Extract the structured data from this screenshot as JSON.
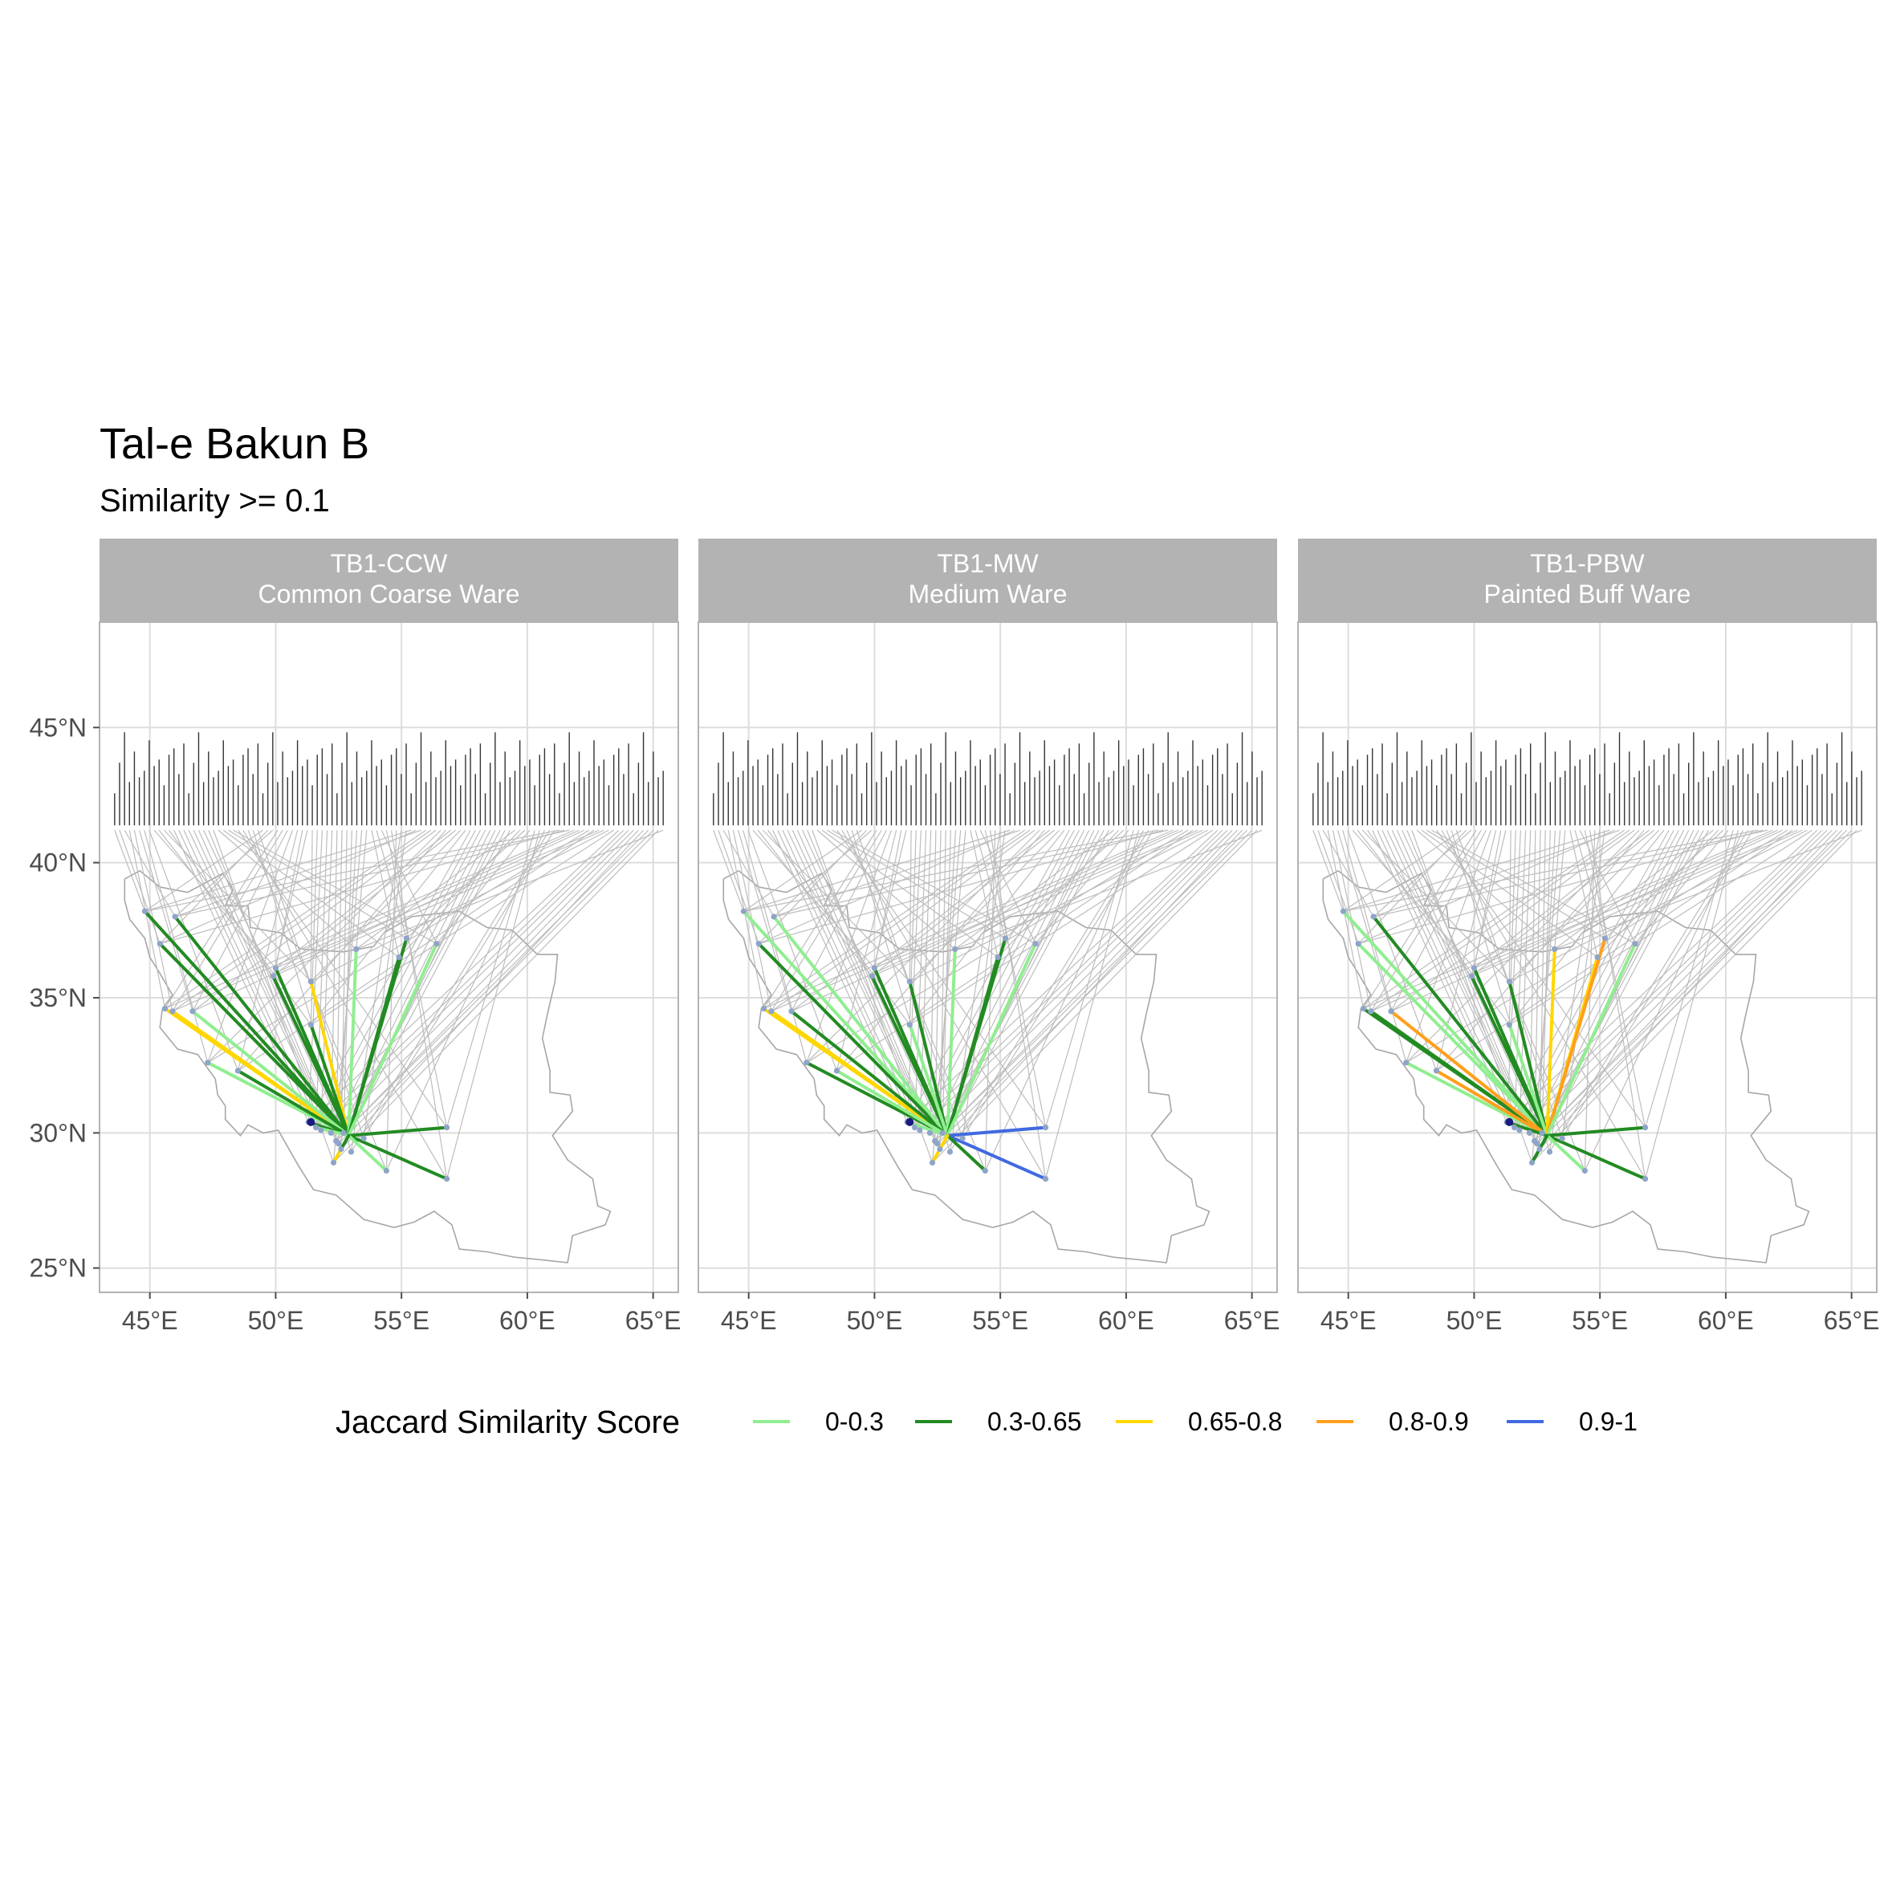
{
  "title": "Tal-e Bakun B",
  "subtitle": "Similarity >= 0.1",
  "lat_labels": [
    "25°N",
    "30°N",
    "35°N",
    "40°N",
    "45°N"
  ],
  "lon_labels": [
    "45°E",
    "50°E",
    "55°E",
    "60°E",
    "65°E"
  ],
  "legend": {
    "title": "Jaccard Similarity Score",
    "items": [
      {
        "label": "0-0.3",
        "color": "#90ee90"
      },
      {
        "label": "0.3-0.65",
        "color": "#228b22"
      },
      {
        "label": "0.65-0.8",
        "color": "#ffd700"
      },
      {
        "label": "0.8-0.9",
        "color": "#ff9f1c"
      },
      {
        "label": "0.9-1",
        "color": "#4169e1"
      }
    ]
  },
  "colors": {
    "strip": "#b3b3b3",
    "grid": "#dddddd",
    "label_leader": "#bdbdbd",
    "border": "#a6a6a6",
    "site_point": "#8ea4c8",
    "origin_point": "#1a1a80"
  },
  "panels": [
    {
      "code": "TB1-CCW",
      "name": "Common Coarse Ware"
    },
    {
      "code": "TB1-MW",
      "name": "Medium Ware"
    },
    {
      "code": "TB1-PBW",
      "name": "Painted Buff Ware"
    }
  ],
  "map_data": {
    "origin": [
      52.9,
      29.9
    ],
    "xlim": [
      43,
      66
    ],
    "ylim": [
      24.1,
      48.9
    ],
    "label_row_lat": 41.2,
    "label_lon_range": [
      43.6,
      65.4
    ],
    "label_count": 112,
    "border_lonlat": [
      [
        44.0,
        39.4
      ],
      [
        44.6,
        39.7
      ],
      [
        45.4,
        39.1
      ],
      [
        46.5,
        38.9
      ],
      [
        47.9,
        39.6
      ],
      [
        48.3,
        39.0
      ],
      [
        48.0,
        38.4
      ],
      [
        48.9,
        38.4
      ],
      [
        49.0,
        37.6
      ],
      [
        50.2,
        37.4
      ],
      [
        51.0,
        36.8
      ],
      [
        52.7,
        36.7
      ],
      [
        53.9,
        36.9
      ],
      [
        54.3,
        37.4
      ],
      [
        55.4,
        38.0
      ],
      [
        56.3,
        38.1
      ],
      [
        57.3,
        38.2
      ],
      [
        58.4,
        37.6
      ],
      [
        59.4,
        37.5
      ],
      [
        60.4,
        36.6
      ],
      [
        61.2,
        36.6
      ],
      [
        61.1,
        35.6
      ],
      [
        60.8,
        34.4
      ],
      [
        60.6,
        33.5
      ],
      [
        60.9,
        32.3
      ],
      [
        60.9,
        31.5
      ],
      [
        61.7,
        31.4
      ],
      [
        61.8,
        30.8
      ],
      [
        61.0,
        29.9
      ],
      [
        61.6,
        29.0
      ],
      [
        62.6,
        28.3
      ],
      [
        62.8,
        27.3
      ],
      [
        63.3,
        27.1
      ],
      [
        63.1,
        26.6
      ],
      [
        61.8,
        26.2
      ],
      [
        61.6,
        25.2
      ],
      [
        60.6,
        25.3
      ],
      [
        59.5,
        25.4
      ],
      [
        58.4,
        25.6
      ],
      [
        57.3,
        25.7
      ],
      [
        57.0,
        26.6
      ],
      [
        56.3,
        27.1
      ],
      [
        55.5,
        26.7
      ],
      [
        54.7,
        26.5
      ],
      [
        53.5,
        26.8
      ],
      [
        52.4,
        27.7
      ],
      [
        51.5,
        27.9
      ],
      [
        50.9,
        28.8
      ],
      [
        50.1,
        30.1
      ],
      [
        49.5,
        30.0
      ],
      [
        48.9,
        30.3
      ],
      [
        48.6,
        29.9
      ],
      [
        48.0,
        30.5
      ],
      [
        48.0,
        31.0
      ],
      [
        47.7,
        31.4
      ],
      [
        47.6,
        32.0
      ],
      [
        46.9,
        32.9
      ],
      [
        46.1,
        33.1
      ],
      [
        45.4,
        33.9
      ],
      [
        45.5,
        34.6
      ],
      [
        45.9,
        35.1
      ],
      [
        45.4,
        35.9
      ],
      [
        45.0,
        36.5
      ],
      [
        44.8,
        37.2
      ],
      [
        44.2,
        37.9
      ],
      [
        44.0,
        38.6
      ],
      [
        44.0,
        39.4
      ]
    ],
    "sites": [
      [
        44.8,
        38.2
      ],
      [
        45.4,
        37.0
      ],
      [
        46.0,
        38.0
      ],
      [
        45.6,
        34.6
      ],
      [
        45.9,
        34.5
      ],
      [
        46.7,
        34.5
      ],
      [
        47.3,
        32.6
      ],
      [
        48.5,
        32.3
      ],
      [
        50.0,
        36.1
      ],
      [
        49.9,
        35.8
      ],
      [
        51.4,
        35.6
      ],
      [
        51.4,
        34.0
      ],
      [
        51.3,
        30.4
      ],
      [
        51.6,
        30.2
      ],
      [
        51.8,
        30.1
      ],
      [
        52.2,
        30.0
      ],
      [
        52.4,
        29.7
      ],
      [
        52.6,
        29.4
      ],
      [
        52.7,
        30.0
      ],
      [
        52.5,
        29.6
      ],
      [
        52.3,
        28.9
      ],
      [
        53.2,
        36.8
      ],
      [
        54.9,
        36.5
      ],
      [
        55.2,
        37.2
      ],
      [
        56.4,
        37.0
      ],
      [
        56.8,
        30.2
      ],
      [
        56.8,
        28.3
      ],
      [
        54.4,
        28.6
      ],
      [
        53.0,
        29.3
      ],
      [
        53.5,
        29.8
      ]
    ],
    "connections": [
      [
        {
          "to": [
            44.8,
            38.2
          ],
          "c": 1
        },
        {
          "to": [
            45.4,
            37.0
          ],
          "c": 1
        },
        {
          "to": [
            46.0,
            38.0
          ],
          "c": 1
        },
        {
          "to": [
            45.6,
            34.6
          ],
          "c": 2
        },
        {
          "to": [
            45.9,
            34.5
          ],
          "c": 2
        },
        {
          "to": [
            46.7,
            34.5
          ],
          "c": 0
        },
        {
          "to": [
            47.3,
            32.6
          ],
          "c": 0
        },
        {
          "to": [
            48.5,
            32.3
          ],
          "c": 1
        },
        {
          "to": [
            50.0,
            36.1
          ],
          "c": 1
        },
        {
          "to": [
            49.9,
            35.8
          ],
          "c": 1
        },
        {
          "to": [
            51.4,
            35.6
          ],
          "c": 2
        },
        {
          "to": [
            51.4,
            34.0
          ],
          "c": 1
        },
        {
          "to": [
            51.3,
            30.4
          ],
          "c": 1
        },
        {
          "to": [
            51.6,
            30.2
          ],
          "c": 0
        },
        {
          "to": [
            52.3,
            28.9
          ],
          "c": 2
        },
        {
          "to": [
            53.2,
            36.8
          ],
          "c": 0
        },
        {
          "to": [
            54.9,
            36.5
          ],
          "c": 1
        },
        {
          "to": [
            55.2,
            37.2
          ],
          "c": 1
        },
        {
          "to": [
            56.4,
            37.0
          ],
          "c": 0
        },
        {
          "to": [
            56.8,
            30.2
          ],
          "c": 1
        },
        {
          "to": [
            56.8,
            28.3
          ],
          "c": 1
        },
        {
          "to": [
            54.4,
            28.6
          ],
          "c": 0
        },
        {
          "to": [
            52.6,
            29.4
          ],
          "c": 1
        }
      ],
      [
        {
          "to": [
            44.8,
            38.2
          ],
          "c": 0
        },
        {
          "to": [
            45.4,
            37.0
          ],
          "c": 1
        },
        {
          "to": [
            46.0,
            38.0
          ],
          "c": 0
        },
        {
          "to": [
            45.6,
            34.6
          ],
          "c": 2
        },
        {
          "to": [
            45.9,
            34.5
          ],
          "c": 2
        },
        {
          "to": [
            46.7,
            34.5
          ],
          "c": 1
        },
        {
          "to": [
            47.3,
            32.6
          ],
          "c": 1
        },
        {
          "to": [
            48.5,
            32.3
          ],
          "c": 0
        },
        {
          "to": [
            50.0,
            36.1
          ],
          "c": 1
        },
        {
          "to": [
            49.9,
            35.8
          ],
          "c": 1
        },
        {
          "to": [
            51.4,
            35.6
          ],
          "c": 1
        },
        {
          "to": [
            51.4,
            34.0
          ],
          "c": 0
        },
        {
          "to": [
            51.3,
            30.4
          ],
          "c": 0
        },
        {
          "to": [
            52.3,
            28.9
          ],
          "c": 2
        },
        {
          "to": [
            53.2,
            36.8
          ],
          "c": 0
        },
        {
          "to": [
            54.9,
            36.5
          ],
          "c": 1
        },
        {
          "to": [
            55.2,
            37.2
          ],
          "c": 1
        },
        {
          "to": [
            56.4,
            37.0
          ],
          "c": 0
        },
        {
          "to": [
            56.8,
            30.2
          ],
          "c": 4
        },
        {
          "to": [
            56.8,
            28.3
          ],
          "c": 4
        },
        {
          "to": [
            54.4,
            28.6
          ],
          "c": 1
        },
        {
          "to": [
            52.6,
            29.4
          ],
          "c": 2
        }
      ],
      [
        {
          "to": [
            44.8,
            38.2
          ],
          "c": 0
        },
        {
          "to": [
            45.4,
            37.0
          ],
          "c": 0
        },
        {
          "to": [
            46.0,
            38.0
          ],
          "c": 1
        },
        {
          "to": [
            45.6,
            34.6
          ],
          "c": 1
        },
        {
          "to": [
            45.9,
            34.5
          ],
          "c": 1
        },
        {
          "to": [
            46.7,
            34.5
          ],
          "c": 3
        },
        {
          "to": [
            47.3,
            32.6
          ],
          "c": 0
        },
        {
          "to": [
            48.5,
            32.3
          ],
          "c": 3
        },
        {
          "to": [
            50.0,
            36.1
          ],
          "c": 1
        },
        {
          "to": [
            49.9,
            35.8
          ],
          "c": 1
        },
        {
          "to": [
            51.4,
            35.6
          ],
          "c": 1
        },
        {
          "to": [
            51.4,
            34.0
          ],
          "c": 0
        },
        {
          "to": [
            51.3,
            30.4
          ],
          "c": 1
        },
        {
          "to": [
            52.3,
            28.9
          ],
          "c": 1
        },
        {
          "to": [
            53.2,
            36.8
          ],
          "c": 2
        },
        {
          "to": [
            54.9,
            36.5
          ],
          "c": 2
        },
        {
          "to": [
            55.2,
            37.2
          ],
          "c": 3
        },
        {
          "to": [
            56.4,
            37.0
          ],
          "c": 0
        },
        {
          "to": [
            56.8,
            30.2
          ],
          "c": 1
        },
        {
          "to": [
            56.8,
            28.3
          ],
          "c": 1
        },
        {
          "to": [
            54.4,
            28.6
          ],
          "c": 0
        },
        {
          "to": [
            52.6,
            29.4
          ],
          "c": 1
        }
      ]
    ]
  }
}
